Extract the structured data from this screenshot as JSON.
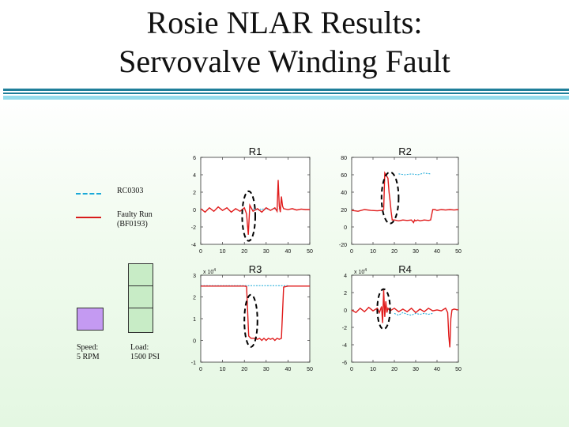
{
  "title": {
    "line1": "Rosie NLAR Results:",
    "line2": "Servovalve Winding Fault"
  },
  "legend": {
    "items": [
      {
        "label": "RC0303",
        "color": "#1aa9d8",
        "style": "dashed"
      },
      {
        "label": "Faulty Run\n(BF0193)",
        "color": "#d81c1c",
        "style": "solid"
      }
    ]
  },
  "indicator": {
    "purple_box_color": "#c49af2",
    "speed_label": "Speed:\n5 RPM",
    "load_label": "Load:\n1500 PSI"
  },
  "colors": {
    "reference": "#1aa9d8",
    "faulty": "#e01b1b",
    "highlight_ellipse": "#000000"
  },
  "chart_data": [
    {
      "type": "line",
      "title": "R1",
      "multiplier": "",
      "xlim": [
        0,
        50
      ],
      "ylim": [
        -4,
        6
      ],
      "xticks": [
        "0",
        "10",
        "20",
        "30",
        "40",
        "50"
      ],
      "yticks": [
        "-4",
        "-2",
        "0",
        "2",
        "4",
        "6"
      ],
      "highlight": {
        "x": [
          19,
          25
        ],
        "y": [
          -3.6,
          2.1
        ]
      },
      "series": [
        {
          "name": "RC0303",
          "points": [
            [
              23,
              0.2
            ],
            [
              24,
              0
            ],
            [
              25,
              0.1
            ],
            [
              26,
              -0.1
            ],
            [
              27,
              0.1
            ],
            [
              28,
              -0.05
            ],
            [
              29,
              0.15
            ],
            [
              30,
              0
            ],
            [
              31,
              0.1
            ],
            [
              32,
              -0.1
            ],
            [
              33,
              0.05
            ],
            [
              34,
              0.1
            ],
            [
              35,
              -0.05
            ],
            [
              36,
              0.1
            ],
            [
              37,
              0.05
            ]
          ]
        },
        {
          "name": "Faulty Run (BF0193)",
          "points": [
            [
              0,
              0.1
            ],
            [
              2,
              -0.3
            ],
            [
              4,
              0.2
            ],
            [
              6,
              -0.2
            ],
            [
              8,
              0.3
            ],
            [
              10,
              -0.1
            ],
            [
              12,
              0.2
            ],
            [
              14,
              -0.3
            ],
            [
              16,
              0.1
            ],
            [
              18,
              -0.2
            ],
            [
              20,
              0.2
            ],
            [
              21,
              -0.5
            ],
            [
              21.8,
              -2.9
            ],
            [
              22.5,
              0.5
            ],
            [
              24,
              -0.2
            ],
            [
              26,
              0.1
            ],
            [
              28,
              -0.3
            ],
            [
              30,
              0.2
            ],
            [
              32,
              -0.1
            ],
            [
              34,
              0.2
            ],
            [
              35,
              -0.2
            ],
            [
              35.5,
              3.4
            ],
            [
              36,
              0.4
            ],
            [
              36.5,
              -0.3
            ],
            [
              37,
              1.5
            ],
            [
              37.5,
              0.4
            ],
            [
              38,
              0.1
            ],
            [
              40,
              0
            ],
            [
              42,
              0.1
            ],
            [
              44,
              -0.05
            ],
            [
              46,
              0.05
            ],
            [
              48,
              0
            ],
            [
              50,
              0
            ]
          ]
        }
      ]
    },
    {
      "type": "line",
      "title": "R2",
      "multiplier": "",
      "xlim": [
        0,
        50
      ],
      "ylim": [
        -20,
        80
      ],
      "xticks": [
        "0",
        "10",
        "20",
        "30",
        "40",
        "50"
      ],
      "yticks": [
        "-20",
        "0",
        "20",
        "40",
        "60",
        "80"
      ],
      "highlight": {
        "x": [
          14,
          22
        ],
        "y": [
          4,
          63
        ]
      },
      "series": [
        {
          "name": "RC0303",
          "points": [
            [
              22,
              61
            ],
            [
              25,
              60
            ],
            [
              28,
              61
            ],
            [
              31,
              60
            ],
            [
              34,
              62
            ],
            [
              37,
              61
            ]
          ]
        },
        {
          "name": "Faulty Run (BF0193)",
          "points": [
            [
              0,
              19
            ],
            [
              3,
              18
            ],
            [
              6,
              20
            ],
            [
              9,
              19
            ],
            [
              12,
              18.5
            ],
            [
              14,
              19
            ],
            [
              15,
              20
            ],
            [
              15.5,
              62
            ],
            [
              16,
              60
            ],
            [
              16.5,
              58
            ],
            [
              17,
              56
            ],
            [
              17.5,
              40
            ],
            [
              18,
              30
            ],
            [
              18.5,
              18
            ],
            [
              19,
              8
            ],
            [
              20,
              8
            ],
            [
              22,
              7
            ],
            [
              24,
              8
            ],
            [
              26,
              7.5
            ],
            [
              28,
              8
            ],
            [
              29,
              5
            ],
            [
              29.5,
              8
            ],
            [
              30,
              7
            ],
            [
              31,
              8
            ],
            [
              32,
              7
            ],
            [
              34,
              8
            ],
            [
              36,
              7.5
            ],
            [
              37,
              8
            ],
            [
              38,
              20
            ],
            [
              39,
              20
            ],
            [
              40,
              19
            ],
            [
              42,
              20
            ],
            [
              44,
              19.5
            ],
            [
              46,
              20
            ],
            [
              48,
              19.5
            ],
            [
              50,
              20
            ]
          ]
        }
      ]
    },
    {
      "type": "line",
      "title": "R3",
      "multiplier": "x 10^4",
      "xlim": [
        0,
        50
      ],
      "ylim": [
        -1,
        3
      ],
      "xticks": [
        "0",
        "10",
        "20",
        "30",
        "40",
        "50"
      ],
      "yticks": [
        "-1",
        "0",
        "1",
        "2",
        "3"
      ],
      "highlight": {
        "x": [
          20,
          26
        ],
        "y": [
          -0.3,
          2.1
        ]
      },
      "series": [
        {
          "name": "RC0303",
          "points": [
            [
              0,
              2.52
            ],
            [
              5,
              2.52
            ],
            [
              10,
              2.52
            ],
            [
              15,
              2.52
            ],
            [
              20,
              2.52
            ],
            [
              25,
              2.52
            ],
            [
              30,
              2.52
            ],
            [
              35,
              2.52
            ],
            [
              40,
              2.52
            ]
          ]
        },
        {
          "name": "Faulty Run (BF0193)",
          "points": [
            [
              0,
              2.5
            ],
            [
              5,
              2.5
            ],
            [
              10,
              2.5
            ],
            [
              15,
              2.5
            ],
            [
              20,
              2.5
            ],
            [
              21,
              2.48
            ],
            [
              22,
              0.2
            ],
            [
              23,
              0.1
            ],
            [
              25,
              0.1
            ],
            [
              26,
              0.05
            ],
            [
              27,
              0.1
            ],
            [
              28,
              0.0
            ],
            [
              29,
              0.1
            ],
            [
              30,
              0.0
            ],
            [
              31,
              0.1
            ],
            [
              32,
              0.05
            ],
            [
              33,
              0.1
            ],
            [
              34,
              0.0
            ],
            [
              35,
              0.1
            ],
            [
              36,
              0.05
            ],
            [
              37,
              0.1
            ],
            [
              38,
              2.45
            ],
            [
              40,
              2.5
            ],
            [
              45,
              2.5
            ],
            [
              50,
              2.5
            ]
          ]
        }
      ]
    },
    {
      "type": "line",
      "title": "R4",
      "multiplier": "x 10^4",
      "xlim": [
        0,
        50
      ],
      "ylim": [
        -6,
        4
      ],
      "xticks": [
        "0",
        "10",
        "20",
        "30",
        "40",
        "50"
      ],
      "yticks": [
        "-6",
        "-4",
        "-2",
        "0",
        "2",
        "4"
      ],
      "highlight": {
        "x": [
          12,
          18
        ],
        "y": [
          -2.2,
          2.4
        ]
      },
      "series": [
        {
          "name": "RC0303",
          "points": [
            [
              20,
              -0.4
            ],
            [
              22,
              -0.6
            ],
            [
              24,
              -0.3
            ],
            [
              26,
              -0.5
            ],
            [
              28,
              -0.6
            ],
            [
              30,
              -0.4
            ],
            [
              32,
              -0.5
            ],
            [
              34,
              -0.4
            ],
            [
              36,
              -0.5
            ],
            [
              38,
              -0.4
            ]
          ]
        },
        {
          "name": "Faulty Run (BF0193)",
          "points": [
            [
              0,
              0
            ],
            [
              2,
              -0.3
            ],
            [
              4,
              0.2
            ],
            [
              6,
              -0.2
            ],
            [
              8,
              0.3
            ],
            [
              10,
              -0.1
            ],
            [
              12,
              0.2
            ],
            [
              13,
              -0.3
            ],
            [
              14,
              0.4
            ],
            [
              14.5,
              -1.5
            ],
            [
              15,
              2.3
            ],
            [
              15.5,
              -0.8
            ],
            [
              16,
              1.0
            ],
            [
              16.5,
              -0.3
            ],
            [
              17,
              0.2
            ],
            [
              18,
              -0.1
            ],
            [
              20,
              0.2
            ],
            [
              22,
              -0.2
            ],
            [
              24,
              0.1
            ],
            [
              26,
              -0.2
            ],
            [
              28,
              0.2
            ],
            [
              30,
              -0.3
            ],
            [
              32,
              0.1
            ],
            [
              34,
              -0.2
            ],
            [
              36,
              0.2
            ],
            [
              38,
              -0.1
            ],
            [
              40,
              0
            ],
            [
              42,
              -0.1
            ],
            [
              44,
              0.2
            ],
            [
              45,
              -0.3
            ],
            [
              45.5,
              -3.0
            ],
            [
              46,
              -4.3
            ],
            [
              46.5,
              -1.0
            ],
            [
              47,
              0
            ],
            [
              48,
              0.1
            ],
            [
              50,
              0
            ]
          ]
        }
      ]
    }
  ]
}
